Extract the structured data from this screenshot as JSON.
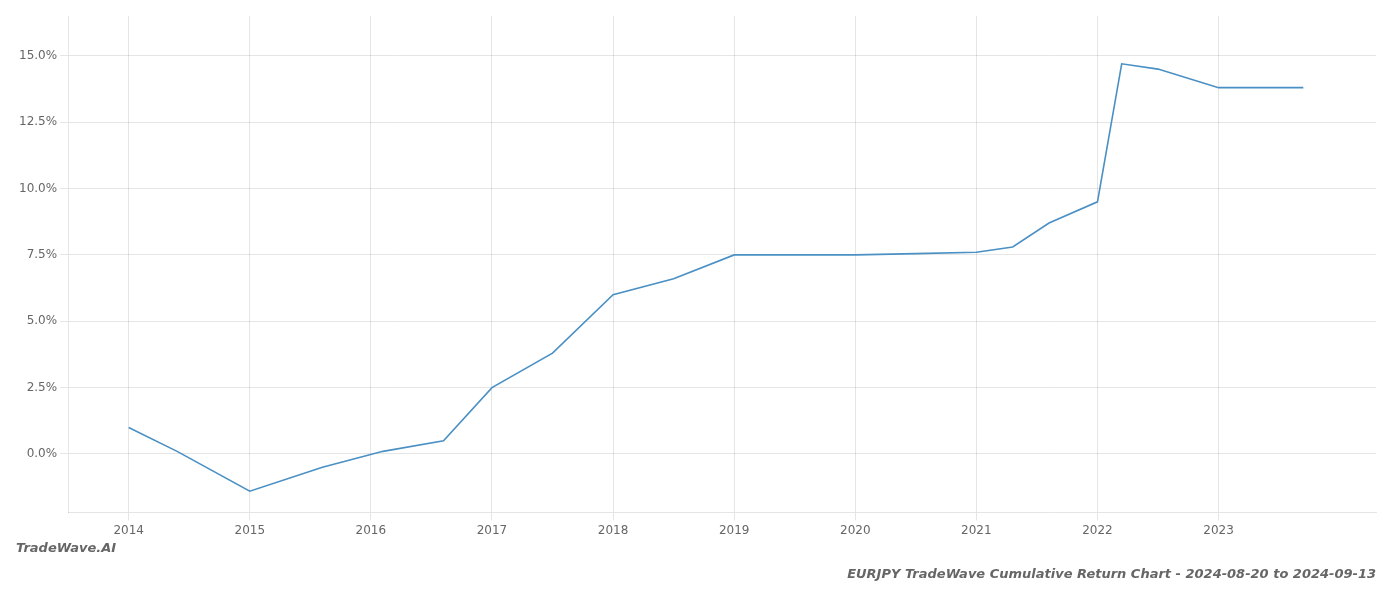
{
  "chart_data": {
    "type": "line",
    "title": "EURJPY TradeWave Cumulative Return Chart - 2024-08-20 to 2024-09-13",
    "annotations": [
      "TradeWave.AI"
    ],
    "x": [
      2014.0,
      2014.4,
      2015.0,
      2015.6,
      2016.1,
      2016.6,
      2017.0,
      2017.5,
      2018.0,
      2018.5,
      2019.0,
      2019.5,
      2020.0,
      2020.5,
      2021.0,
      2021.3,
      2021.6,
      2022.0,
      2022.2,
      2022.5,
      2023.0,
      2023.7
    ],
    "values": [
      1.0,
      0.1,
      -1.4,
      -0.5,
      0.1,
      0.5,
      2.5,
      3.8,
      6.0,
      6.6,
      7.5,
      7.5,
      7.5,
      7.55,
      7.6,
      7.8,
      8.7,
      9.5,
      14.7,
      14.5,
      13.8,
      13.8
    ],
    "color": "#4a90c4",
    "xlim": [
      2013.5,
      2024.3
    ],
    "ylim": [
      -2.2,
      16.5
    ],
    "xticks": [
      2014,
      2015,
      2016,
      2017,
      2018,
      2019,
      2020,
      2021,
      2022,
      2023
    ],
    "yticks": [
      {
        "value": 0.0,
        "label": "0.0%"
      },
      {
        "value": 2.5,
        "label": "2.5%"
      },
      {
        "value": 5.0,
        "label": "5.0%"
      },
      {
        "value": 7.5,
        "label": "7.5%"
      },
      {
        "value": 10.0,
        "label": "10.0%"
      },
      {
        "value": 12.5,
        "label": "12.5%"
      },
      {
        "value": 15.0,
        "label": "15.0%"
      }
    ],
    "grid": true
  }
}
